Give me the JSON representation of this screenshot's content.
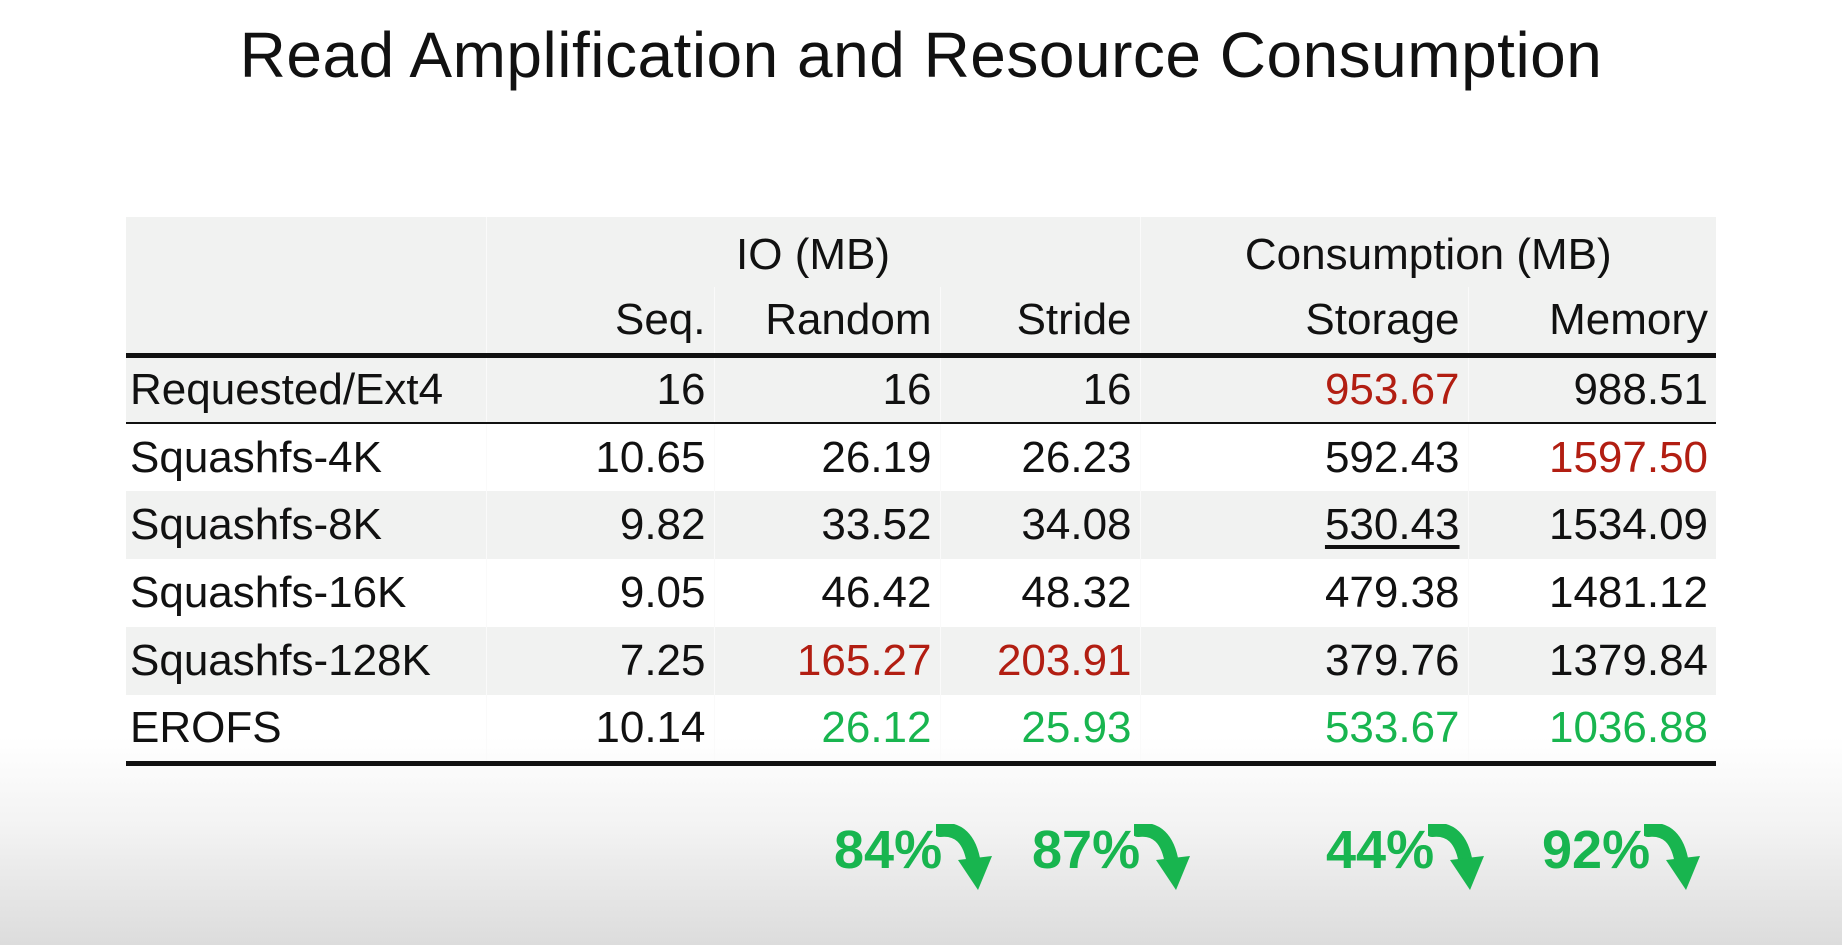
{
  "title": "Read Amplification and Resource Consumption",
  "header": {
    "group_io": "IO (MB)",
    "group_consumption": "Consumption (MB)",
    "columns": [
      "Seq.",
      "Random",
      "Stride",
      "Storage",
      "Memory"
    ]
  },
  "rows": [
    {
      "label": "Requested/Ext4",
      "values": [
        "16",
        "16",
        "16",
        "953.67",
        "988.51"
      ]
    },
    {
      "label": "Squashfs-4K",
      "values": [
        "10.65",
        "26.19",
        "26.23",
        "592.43",
        "1597.50"
      ]
    },
    {
      "label": "Squashfs-8K",
      "values": [
        "9.82",
        "33.52",
        "34.08",
        "530.43",
        "1534.09"
      ]
    },
    {
      "label": "Squashfs-16K",
      "values": [
        "9.05",
        "46.42",
        "48.32",
        "479.38",
        "1481.12"
      ]
    },
    {
      "label": "Squashfs-128K",
      "values": [
        "7.25",
        "165.27",
        "203.91",
        "379.76",
        "1379.84"
      ]
    },
    {
      "label": "EROFS",
      "values": [
        "10.14",
        "26.12",
        "25.93",
        "533.67",
        "1036.88"
      ]
    }
  ],
  "reductions": [
    "84%",
    "87%",
    "44%",
    "92%"
  ],
  "colors": {
    "highlight_red": "#b21e12",
    "highlight_green": "#18b54f"
  },
  "icons": {
    "reduction": "arrow-curved-down-right-icon"
  }
}
